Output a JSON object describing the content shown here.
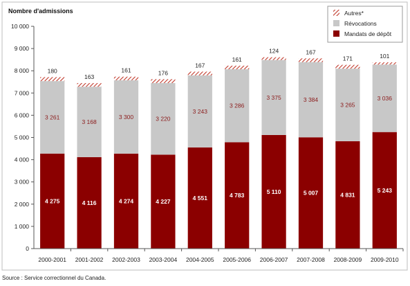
{
  "chart_data": {
    "type": "bar",
    "stacked": true,
    "ylabel": "Nombre d'admissions",
    "xlabel": "",
    "title": "",
    "ylim": [
      0,
      10000
    ],
    "yticks": [
      0,
      1000,
      2000,
      3000,
      4000,
      5000,
      6000,
      7000,
      8000,
      9000,
      10000
    ],
    "ytick_labels": [
      "0",
      "1 000",
      "2 000",
      "3 000",
      "4 000",
      "5 000",
      "6 000",
      "7 000",
      "8 000",
      "9 000",
      "10 000"
    ],
    "grid": false,
    "legend_position": "top-right",
    "categories": [
      "2000-2001",
      "2001-2002",
      "2002-2003",
      "2003-2004",
      "2004-2005",
      "2005-2006",
      "2006-2007",
      "2007-2008",
      "2008-2009",
      "2009-2010"
    ],
    "series": [
      {
        "name": "Mandats de dépôt",
        "color": "#8b0000",
        "values": [
          4275,
          4116,
          4274,
          4227,
          4551,
          4783,
          5110,
          5007,
          4831,
          5243
        ],
        "labels": [
          "4 275",
          "4 116",
          "4 274",
          "4 227",
          "4 551",
          "4 783",
          "5 110",
          "5 007",
          "4 831",
          "5 243"
        ]
      },
      {
        "name": "Révocations",
        "color": "#c8c8c8",
        "values": [
          3261,
          3168,
          3300,
          3220,
          3243,
          3286,
          3375,
          3384,
          3265,
          3036
        ],
        "labels": [
          "3 261",
          "3 168",
          "3 300",
          "3 220",
          "3 243",
          "3 286",
          "3 375",
          "3 384",
          "3 265",
          "3 036"
        ]
      },
      {
        "name": "Autres*",
        "color": "#c0392b",
        "pattern": "hatched",
        "values": [
          180,
          163,
          161,
          176,
          167,
          161,
          124,
          167,
          171,
          101
        ],
        "labels": [
          "180",
          "163",
          "161",
          "176",
          "167",
          "161",
          "124",
          "167",
          "171",
          "101"
        ]
      }
    ],
    "legend_order": [
      "Autres*",
      "Révocations",
      "Mandats de dépôt"
    ]
  },
  "source_note": "Source : Service correctionnel du Canada.",
  "colors": {
    "mandats": "#8b0000",
    "revocations": "#c8c8c8",
    "autres": "#c0392b",
    "frame": "#bdbdbd"
  }
}
